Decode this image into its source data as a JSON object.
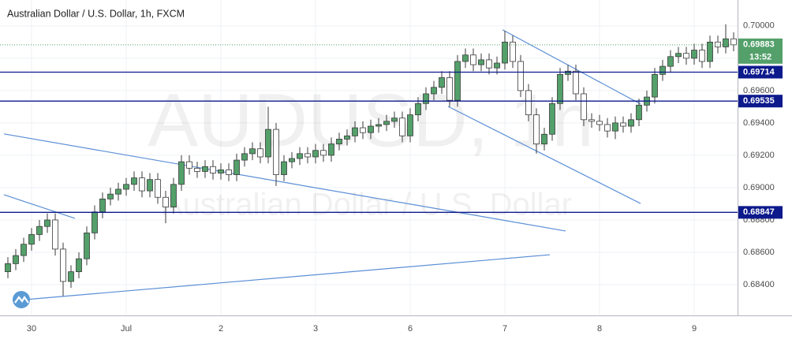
{
  "chart_data": {
    "type": "candlestick",
    "title": "Australian Dollar / U.S. Dollar, 1h, FXCM",
    "watermark": [
      "AUDUSD, 1h",
      "Australian Dollar / U.S. Dollar"
    ],
    "up_color": "#53a06a",
    "down_color": "#ffffff",
    "edge_color": "#3b3b3b",
    "grid": true,
    "xlim": [
      0,
      186
    ],
    "ylim": [
      0.6821,
      0.7016
    ],
    "xticks": [
      {
        "value": 7,
        "label": "30"
      },
      {
        "value": 31,
        "label": "Jul"
      },
      {
        "value": 55,
        "label": "2"
      },
      {
        "value": 79,
        "label": "3"
      },
      {
        "value": 103,
        "label": "6"
      },
      {
        "value": 127,
        "label": "7"
      },
      {
        "value": 151,
        "label": "8"
      },
      {
        "value": 175,
        "label": "9"
      }
    ],
    "yticks": [
      {
        "value": 0.684,
        "label": "0.68400"
      },
      {
        "value": 0.686,
        "label": "0.68600"
      },
      {
        "value": 0.688,
        "label": "0.68800"
      },
      {
        "value": 0.69,
        "label": "0.69000"
      },
      {
        "value": 0.692,
        "label": "0.69200"
      },
      {
        "value": 0.694,
        "label": "0.69400"
      },
      {
        "value": 0.696,
        "label": "0.69600"
      },
      {
        "value": 0.698,
        "label": "0.69800"
      },
      {
        "value": 0.7,
        "label": "0.70000"
      }
    ],
    "levels": [
      {
        "value": 0.69714,
        "label": "0.69714"
      },
      {
        "value": 0.69535,
        "label": "0.69535"
      },
      {
        "value": 0.68847,
        "label": "0.68847"
      }
    ],
    "level_color": "#0d1a8c",
    "last_price": {
      "value": 0.69883,
      "label": "0.69883"
    },
    "countdown": "13:52",
    "trend_color": "#5b8fd6",
    "trendlines": [
      {
        "x": [
          0,
          142.4
        ],
        "y": [
          0.69332,
          0.68732
        ]
      },
      {
        "x": [
          0,
          18
        ],
        "y": [
          0.68956,
          0.6881
        ]
      },
      {
        "x": [
          5,
          138.4
        ],
        "y": [
          0.68307,
          0.68585
        ]
      },
      {
        "x": [
          126.4,
          161.4
        ],
        "y": [
          0.69976,
          0.69517
        ]
      },
      {
        "x": [
          112.6,
          161.4
        ],
        "y": [
          0.69502,
          0.68902
        ]
      }
    ],
    "x": [
      1,
      3,
      5,
      7,
      9,
      11,
      13,
      15,
      17,
      19,
      21,
      23,
      25,
      27,
      29,
      31,
      33,
      35,
      37,
      39,
      41,
      43,
      45,
      47,
      49,
      51,
      53,
      55,
      57,
      59,
      61,
      63,
      65,
      67,
      69,
      71,
      73,
      75,
      77,
      79,
      81,
      83,
      85,
      87,
      89,
      91,
      93,
      95,
      97,
      99,
      101,
      103,
      105,
      107,
      109,
      111,
      113,
      115,
      117,
      119,
      121,
      123,
      125,
      127,
      129,
      131,
      133,
      135,
      137,
      139,
      141,
      143,
      145,
      147,
      149,
      151,
      153,
      155,
      157,
      159,
      161,
      163,
      165,
      167,
      169,
      171,
      173,
      175,
      177,
      179,
      181,
      183,
      185
    ],
    "open": [
      0.6848,
      0.6853,
      0.6858,
      0.6865,
      0.6871,
      0.6876,
      0.688,
      0.6862,
      0.6842,
      0.6848,
      0.6856,
      0.6872,
      0.6885,
      0.6893,
      0.6896,
      0.6899,
      0.6902,
      0.6906,
      0.6898,
      0.6905,
      0.6894,
      0.6888,
      0.6902,
      0.6916,
      0.6912,
      0.691,
      0.6913,
      0.6909,
      0.6911,
      0.6908,
      0.6917,
      0.6921,
      0.6924,
      0.6919,
      0.6936,
      0.6908,
      0.6916,
      0.6918,
      0.6921,
      0.6919,
      0.6923,
      0.692,
      0.6927,
      0.693,
      0.6932,
      0.6937,
      0.6934,
      0.6938,
      0.6939,
      0.6941,
      0.6943,
      0.6932,
      0.6945,
      0.6952,
      0.6958,
      0.6962,
      0.6968,
      0.6954,
      0.6978,
      0.6982,
      0.6976,
      0.6979,
      0.6974,
      0.6977,
      0.699,
      0.6978,
      0.696,
      0.6945,
      0.6927,
      0.6933,
      0.6952,
      0.697,
      0.6972,
      0.6958,
      0.6942,
      0.6941,
      0.6939,
      0.6935,
      0.694,
      0.6938,
      0.6942,
      0.6951,
      0.6956,
      0.697,
      0.6975,
      0.6981,
      0.6983,
      0.698,
      0.6985,
      0.6978,
      0.699,
      0.6987,
      0.6992
    ],
    "high": [
      0.6857,
      0.6862,
      0.6869,
      0.6875,
      0.688,
      0.6884,
      0.6884,
      0.6866,
      0.6852,
      0.686,
      0.6876,
      0.6889,
      0.6897,
      0.69,
      0.6903,
      0.6906,
      0.691,
      0.691,
      0.6909,
      0.6909,
      0.6898,
      0.6906,
      0.692,
      0.692,
      0.6916,
      0.6917,
      0.6917,
      0.6915,
      0.6915,
      0.6921,
      0.6925,
      0.6928,
      0.6928,
      0.695,
      0.694,
      0.692,
      0.6922,
      0.6925,
      0.6925,
      0.6927,
      0.6927,
      0.6931,
      0.6934,
      0.6936,
      0.6941,
      0.6941,
      0.6942,
      0.6943,
      0.6945,
      0.6947,
      0.6947,
      0.6949,
      0.6956,
      0.6962,
      0.6966,
      0.6972,
      0.6972,
      0.6982,
      0.6986,
      0.6986,
      0.6983,
      0.6983,
      0.6981,
      0.6997,
      0.6994,
      0.6982,
      0.6964,
      0.6949,
      0.6937,
      0.6956,
      0.6974,
      0.6976,
      0.6976,
      0.6962,
      0.6946,
      0.6945,
      0.6943,
      0.6944,
      0.6944,
      0.6946,
      0.6955,
      0.696,
      0.6974,
      0.6979,
      0.6985,
      0.6987,
      0.6987,
      0.6989,
      0.6989,
      0.6994,
      0.6994,
      0.7001,
      0.6996
    ],
    "low": [
      0.6844,
      0.6849,
      0.6854,
      0.6861,
      0.6867,
      0.6872,
      0.6858,
      0.6833,
      0.6838,
      0.6844,
      0.6852,
      0.6868,
      0.6881,
      0.6889,
      0.6892,
      0.6895,
      0.6898,
      0.6894,
      0.6894,
      0.689,
      0.6878,
      0.6884,
      0.6898,
      0.6908,
      0.6906,
      0.6906,
      0.6905,
      0.6905,
      0.6904,
      0.6904,
      0.6913,
      0.6917,
      0.6915,
      0.6915,
      0.6901,
      0.6904,
      0.6912,
      0.6914,
      0.6915,
      0.6915,
      0.6916,
      0.6916,
      0.6923,
      0.6926,
      0.6928,
      0.693,
      0.693,
      0.6934,
      0.6935,
      0.6937,
      0.6928,
      0.6928,
      0.6941,
      0.6948,
      0.6954,
      0.6958,
      0.695,
      0.695,
      0.6974,
      0.6972,
      0.6972,
      0.697,
      0.697,
      0.6973,
      0.6974,
      0.6956,
      0.6941,
      0.6921,
      0.6923,
      0.6929,
      0.6948,
      0.6966,
      0.6954,
      0.6938,
      0.6937,
      0.6935,
      0.6931,
      0.693,
      0.6934,
      0.6934,
      0.6938,
      0.6947,
      0.6952,
      0.6966,
      0.6971,
      0.6977,
      0.6976,
      0.6976,
      0.6974,
      0.6974,
      0.6983,
      0.6983,
      0.69843
    ],
    "close": [
      0.6853,
      0.6858,
      0.6865,
      0.6871,
      0.6876,
      0.688,
      0.6862,
      0.6842,
      0.6848,
      0.6856,
      0.6872,
      0.6885,
      0.6893,
      0.6896,
      0.6899,
      0.6902,
      0.6906,
      0.6898,
      0.6905,
      0.6894,
      0.6888,
      0.6902,
      0.6916,
      0.6912,
      0.691,
      0.6913,
      0.6909,
      0.6911,
      0.6908,
      0.6917,
      0.6921,
      0.6924,
      0.6919,
      0.6936,
      0.6908,
      0.6916,
      0.6918,
      0.6921,
      0.6919,
      0.6923,
      0.692,
      0.6927,
      0.693,
      0.6932,
      0.6937,
      0.6934,
      0.6938,
      0.6939,
      0.6941,
      0.6943,
      0.6932,
      0.6945,
      0.6952,
      0.6958,
      0.6962,
      0.6968,
      0.6954,
      0.6978,
      0.6982,
      0.6976,
      0.6979,
      0.6974,
      0.6977,
      0.699,
      0.6978,
      0.696,
      0.6945,
      0.6927,
      0.6933,
      0.6952,
      0.697,
      0.6972,
      0.6958,
      0.6942,
      0.6941,
      0.6939,
      0.6935,
      0.694,
      0.6938,
      0.6942,
      0.6951,
      0.6956,
      0.697,
      0.6975,
      0.6981,
      0.6983,
      0.698,
      0.6985,
      0.6978,
      0.699,
      0.6987,
      0.6992,
      0.69883
    ]
  }
}
